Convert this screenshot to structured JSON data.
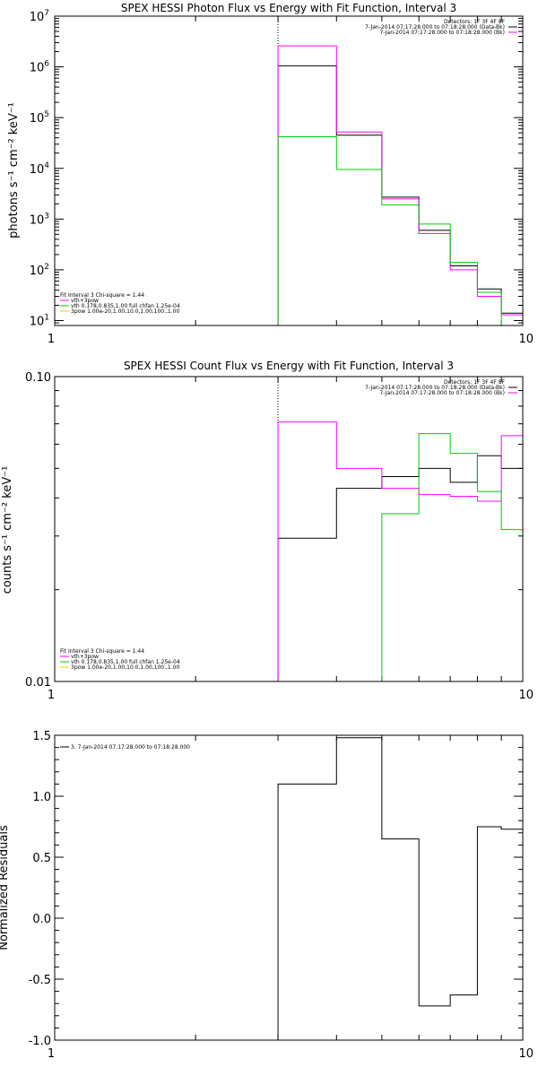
{
  "chart_data": [
    {
      "type": "line",
      "title": "SPEX HESSI Photon Flux vs Energy with Fit Function, Interval 3",
      "ylabel": "photons s⁻¹ cm⁻² keV⁻¹",
      "xlabel": "",
      "xscale": "log",
      "yscale": "log",
      "xlim": [
        1,
        10
      ],
      "ylim": [
        8,
        10000000
      ],
      "xticks": [
        {
          "v": 1,
          "label": "1"
        },
        {
          "v": 10,
          "label": "10"
        }
      ],
      "yticks": [
        {
          "v": 10,
          "base": "10",
          "exp": "1"
        },
        {
          "v": 100,
          "base": "10",
          "exp": "2"
        },
        {
          "v": 1000,
          "base": "10",
          "exp": "3"
        },
        {
          "v": 10000,
          "base": "10",
          "exp": "4"
        },
        {
          "v": 100000,
          "base": "10",
          "exp": "5"
        },
        {
          "v": 1000000,
          "base": "10",
          "exp": "6"
        },
        {
          "v": 10000000,
          "base": "10",
          "exp": "7"
        }
      ],
      "vline": 3,
      "bin_edges": [
        3,
        4,
        5,
        6,
        7,
        8,
        9,
        10
      ],
      "info": [
        "Detectors: 1F 3F 4F 8F",
        "7-Jan-2014 07:17:28.000 to 07:18:28.000 (Data-Bk)",
        "7-Jan-2014 07:17:28.000 to 07:18:28.000 (Bk)"
      ],
      "info_colors": [
        "#000000",
        "#000000",
        "#ff00ff"
      ],
      "legend": [
        "Fit Interval 3   Chi-square = 1.44",
        "vth+3pow",
        "vth 0.178,0.835,1.00  full chfan 1.25e-04",
        "3pow 1.00e-20,1.00,10.0,1.00,100.,1.00"
      ],
      "legend_colors": [
        "#000000",
        "#ff00ff",
        "#00cc00",
        "#ffcc00"
      ],
      "series": [
        {
          "color": "#000000",
          "values": [
            1050000,
            45000,
            2700,
            600,
            120,
            42,
            14
          ]
        },
        {
          "color": "#ff00ff",
          "values": [
            2600000,
            52000,
            2500,
            520,
            100,
            30,
            13
          ]
        },
        {
          "color": "#00cc00",
          "values": [
            42000,
            9500,
            1900,
            800,
            140,
            36,
            null
          ]
        }
      ]
    },
    {
      "type": "line",
      "title": "SPEX HESSI Count Flux vs Energy with Fit Function, Interval 3",
      "ylabel": "counts s⁻¹ cm⁻² keV⁻¹",
      "xlabel": "",
      "xscale": "log",
      "yscale": "log",
      "xlim": [
        1,
        10
      ],
      "ylim": [
        0.01,
        0.1
      ],
      "xticks": [
        {
          "v": 1,
          "label": "1"
        },
        {
          "v": 10,
          "label": "10"
        }
      ],
      "yticks": [
        {
          "v": 0.01,
          "label": "0.01"
        },
        {
          "v": 0.1,
          "label": "0.10"
        }
      ],
      "vline": 3,
      "bin_edges": [
        3,
        4,
        5,
        6,
        7,
        8,
        9,
        10
      ],
      "info": [
        "Detectors: 1F 3F 4F 8F",
        "7-Jan-2014 07:17:28.000 to 07:18:28.000 (Data-Bk)",
        "7-Jan-2014 07:17:28.000 to 07:18:28.000 (Bk)"
      ],
      "info_colors": [
        "#000000",
        "#000000",
        "#ff00ff"
      ],
      "legend": [
        "Fit Interval 3   Chi-square = 1.44",
        "vth+3pow",
        "vth 0.178,0.835,1.00  full chfan 1.25e-04",
        "3pow 1.00e-20,1.00,10.0,1.00,100.,1.00"
      ],
      "legend_colors": [
        "#000000",
        "#ff00ff",
        "#00cc00",
        "#ffcc00"
      ],
      "series": [
        {
          "color": "#000000",
          "values": [
            0.0295,
            0.043,
            0.047,
            0.05,
            0.045,
            0.055,
            0.05
          ]
        },
        {
          "color": "#ff00ff",
          "values": [
            0.071,
            0.05,
            0.043,
            0.041,
            0.0405,
            0.039,
            0.064
          ]
        },
        {
          "color": "#00cc00",
          "values": [
            null,
            null,
            0.0355,
            0.065,
            0.056,
            0.042,
            0.0315
          ]
        }
      ]
    },
    {
      "type": "line",
      "title": "",
      "ylabel": "Normalized Residuals",
      "xlabel": "",
      "xscale": "log",
      "yscale": "linear",
      "xlim": [
        1,
        10
      ],
      "ylim": [
        -1.0,
        1.5
      ],
      "xticks": [
        {
          "v": 1,
          "label": "1"
        },
        {
          "v": 10,
          "label": "10"
        }
      ],
      "yticks": [
        {
          "v": 1.5,
          "label": "1.5"
        },
        {
          "v": 1.0,
          "label": "1.0"
        },
        {
          "v": 0.5,
          "label": "0.5"
        },
        {
          "v": 0.0,
          "label": "0.0"
        },
        {
          "v": -0.5,
          "label": "-0.5"
        },
        {
          "v": -1.0,
          "label": "-1.0"
        }
      ],
      "vline": null,
      "bin_edges": [
        3,
        4,
        5,
        6,
        7,
        8,
        9,
        10
      ],
      "info": [],
      "info_colors": [],
      "legend": [
        "3.  7-Jan-2014 07:17:28.000 to 07:18:28.000"
      ],
      "legend_colors": [
        "#000000"
      ],
      "series": [
        {
          "color": "#000000",
          "values": [
            1.1,
            1.48,
            0.65,
            -0.72,
            -0.63,
            0.75,
            0.73
          ]
        }
      ]
    }
  ]
}
